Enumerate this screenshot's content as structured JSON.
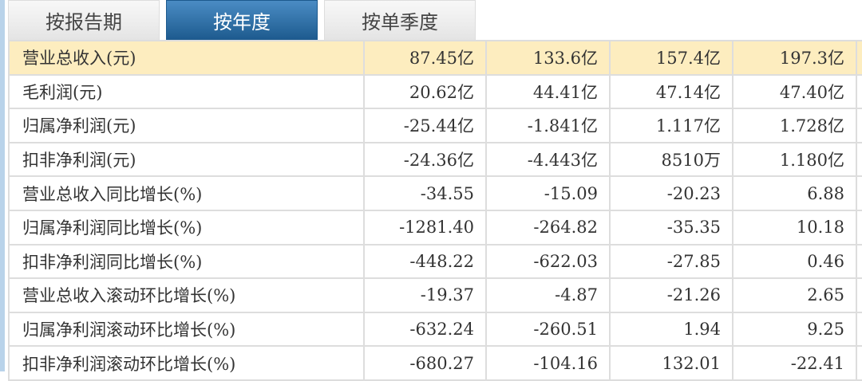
{
  "tabs": [
    {
      "label": "按报告期",
      "active": false
    },
    {
      "label": "按年度",
      "active": true
    },
    {
      "label": "按单季度",
      "active": false
    }
  ],
  "rows": [
    {
      "label": "营业总收入(元)",
      "values": [
        "87.45亿",
        "133.6亿",
        "157.4亿",
        "197.3亿"
      ]
    },
    {
      "label": "毛利润(元)",
      "values": [
        "20.62亿",
        "44.41亿",
        "47.14亿",
        "47.40亿"
      ]
    },
    {
      "label": "归属净利润(元)",
      "values": [
        "-25.44亿",
        "-1.841亿",
        "1.117亿",
        "1.728亿"
      ]
    },
    {
      "label": "扣非净利润(元)",
      "values": [
        "-24.36亿",
        "-4.443亿",
        "8510万",
        "1.180亿"
      ]
    },
    {
      "label": "营业总收入同比增长(%)",
      "values": [
        "-34.55",
        "-15.09",
        "-20.23",
        "6.88"
      ]
    },
    {
      "label": "归属净利润同比增长(%)",
      "values": [
        "-1281.40",
        "-264.82",
        "-35.35",
        "10.18"
      ]
    },
    {
      "label": "扣非净利润同比增长(%)",
      "values": [
        "-448.22",
        "-622.03",
        "-27.85",
        "0.46"
      ]
    },
    {
      "label": "营业总收入滚动环比增长(%)",
      "values": [
        "-19.37",
        "-4.87",
        "-21.26",
        "2.65"
      ]
    },
    {
      "label": "归属净利润滚动环比增长(%)",
      "values": [
        "-632.24",
        "-260.51",
        "1.94",
        "9.25"
      ]
    },
    {
      "label": "扣非净利润滚动环比增长(%)",
      "values": [
        "-680.27",
        "-104.16",
        "132.01",
        "-22.41"
      ]
    }
  ]
}
